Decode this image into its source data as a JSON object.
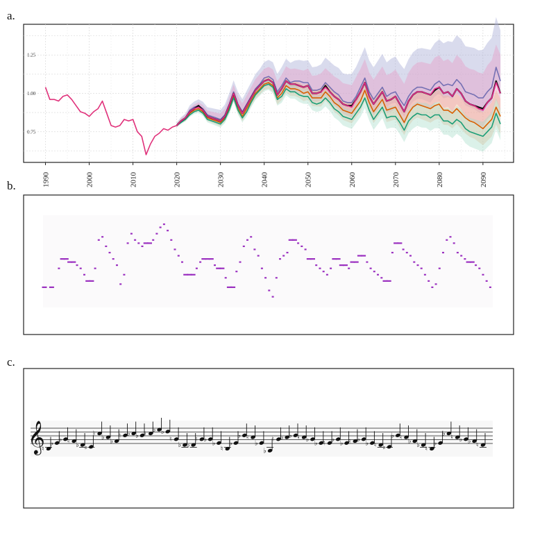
{
  "panels": {
    "a": "a.",
    "b": "b.",
    "c": "c."
  },
  "chart_data": [
    {
      "type": "line",
      "panel": "a.",
      "xlim": [
        1985,
        2097
      ],
      "ylim": [
        0.55,
        1.45
      ],
      "grid": true,
      "x_ticks": [
        1990,
        2000,
        2010,
        2020,
        2030,
        2040,
        2050,
        2060,
        2070,
        2080,
        2090
      ],
      "y_ticks": [
        0.75,
        1.0,
        1.25
      ],
      "y_tick_labels": [
        "0.75",
        "1.00",
        "1.25"
      ],
      "history": {
        "color": "#e0307a",
        "x": [
          1990,
          1991,
          1992,
          1993,
          1994,
          1995,
          1996,
          1997,
          1998,
          1999,
          2000,
          2001,
          2002,
          2003,
          2004,
          2005,
          2006,
          2007,
          2008,
          2009,
          2010,
          2011,
          2012,
          2013,
          2014,
          2015,
          2016,
          2017,
          2018,
          2019,
          2020
        ],
        "y": [
          1.04,
          0.96,
          0.96,
          0.95,
          0.98,
          0.99,
          0.96,
          0.92,
          0.88,
          0.87,
          0.85,
          0.88,
          0.9,
          0.95,
          0.87,
          0.79,
          0.78,
          0.79,
          0.83,
          0.82,
          0.83,
          0.75,
          0.72,
          0.6,
          0.67,
          0.72,
          0.74,
          0.77,
          0.76,
          0.78,
          0.79
        ]
      },
      "forecast_x": [
        2020,
        2021,
        2022,
        2023,
        2024,
        2025,
        2026,
        2027,
        2028,
        2029,
        2030,
        2031,
        2032,
        2033,
        2034,
        2035,
        2036,
        2037,
        2038,
        2039,
        2040,
        2041,
        2042,
        2043,
        2044,
        2045,
        2046,
        2047,
        2048,
        2049,
        2050,
        2051,
        2052,
        2053,
        2054,
        2055,
        2056,
        2057,
        2058,
        2059,
        2060,
        2061,
        2062,
        2063,
        2064,
        2065,
        2066,
        2067,
        2068,
        2069,
        2070,
        2071,
        2072,
        2073,
        2074,
        2075,
        2076,
        2077,
        2078,
        2079,
        2080,
        2081,
        2082,
        2083,
        2084,
        2085,
        2086,
        2087,
        2088,
        2089,
        2090,
        2091,
        2092,
        2093,
        2094
      ],
      "series": [
        {
          "color": "#7570b3",
          "values": [
            0.79,
            0.82,
            0.84,
            0.89,
            0.91,
            0.92,
            0.9,
            0.86,
            0.85,
            0.84,
            0.83,
            0.86,
            0.93,
            1.01,
            0.93,
            0.88,
            0.93,
            0.98,
            1.03,
            1.06,
            1.1,
            1.11,
            1.09,
            1.01,
            1.05,
            1.1,
            1.07,
            1.08,
            1.08,
            1.07,
            1.07,
            1.02,
            1.02,
            1.03,
            1.07,
            1.04,
            1.01,
            0.99,
            0.95,
            0.94,
            0.94,
            0.98,
            1.04,
            1.1,
            1.01,
            0.96,
            1.0,
            1.04,
            0.98,
            1.0,
            1.01,
            0.96,
            0.92,
            0.98,
            1.02,
            1.04,
            1.04,
            1.03,
            1.02,
            1.06,
            1.08,
            1.05,
            1.06,
            1.05,
            1.09,
            1.06,
            1.01,
            1.0,
            0.99,
            0.97,
            0.97,
            1.01,
            1.04,
            1.17,
            1.08
          ]
        },
        {
          "color": "#111111",
          "values": [
            0.79,
            0.82,
            0.84,
            0.88,
            0.9,
            0.92,
            0.89,
            0.85,
            0.84,
            0.83,
            0.82,
            0.85,
            0.92,
            1.0,
            0.92,
            0.87,
            0.92,
            0.97,
            1.02,
            1.05,
            1.08,
            1.09,
            1.07,
            0.99,
            1.03,
            1.08,
            1.06,
            1.06,
            1.05,
            1.04,
            1.05,
            1.0,
            1.0,
            1.01,
            1.05,
            1.01,
            0.98,
            0.96,
            0.93,
            0.92,
            0.92,
            0.96,
            1.01,
            1.07,
            0.98,
            0.93,
            0.97,
            1.01,
            0.95,
            0.96,
            0.98,
            0.93,
            0.88,
            0.95,
            0.99,
            1.01,
            1.01,
            1.0,
            0.99,
            1.02,
            1.04,
            1.0,
            1.01,
            0.98,
            1.03,
            1.0,
            0.95,
            0.93,
            0.92,
            0.91,
            0.9,
            0.94,
            0.97,
            1.08,
            1.0
          ]
        },
        {
          "color": "#e7298a",
          "values": [
            0.79,
            0.82,
            0.84,
            0.88,
            0.9,
            0.91,
            0.89,
            0.85,
            0.84,
            0.83,
            0.82,
            0.85,
            0.92,
            1.0,
            0.92,
            0.87,
            0.92,
            0.97,
            1.02,
            1.05,
            1.08,
            1.09,
            1.07,
            0.99,
            1.03,
            1.08,
            1.06,
            1.06,
            1.05,
            1.04,
            1.05,
            1.0,
            1.0,
            1.01,
            1.04,
            1.01,
            0.98,
            0.96,
            0.93,
            0.92,
            0.91,
            0.96,
            1.01,
            1.07,
            0.98,
            0.93,
            0.97,
            1.01,
            0.95,
            0.96,
            0.98,
            0.93,
            0.88,
            0.95,
            0.99,
            1.01,
            1.01,
            1.0,
            0.99,
            1.03,
            1.04,
            1.0,
            1.01,
            0.98,
            1.03,
            1.0,
            0.95,
            0.93,
            0.92,
            0.9,
            0.89,
            0.94,
            0.97,
            1.07,
            1.0
          ]
        },
        {
          "color": "#d95f02",
          "values": [
            0.79,
            0.82,
            0.83,
            0.87,
            0.89,
            0.9,
            0.88,
            0.84,
            0.83,
            0.82,
            0.81,
            0.84,
            0.9,
            0.98,
            0.9,
            0.85,
            0.9,
            0.95,
            1.0,
            1.03,
            1.06,
            1.07,
            1.05,
            0.97,
            1.0,
            1.05,
            1.03,
            1.03,
            1.02,
            1.0,
            1.01,
            0.97,
            0.97,
            0.97,
            1.01,
            0.98,
            0.94,
            0.92,
            0.89,
            0.88,
            0.87,
            0.91,
            0.95,
            1.02,
            0.94,
            0.88,
            0.92,
            0.96,
            0.89,
            0.9,
            0.91,
            0.86,
            0.81,
            0.87,
            0.91,
            0.93,
            0.92,
            0.91,
            0.9,
            0.92,
            0.93,
            0.89,
            0.89,
            0.87,
            0.9,
            0.87,
            0.84,
            0.82,
            0.81,
            0.79,
            0.77,
            0.8,
            0.83,
            0.91,
            0.85
          ]
        },
        {
          "color": "#1b9e77",
          "values": [
            0.79,
            0.81,
            0.83,
            0.86,
            0.88,
            0.89,
            0.87,
            0.83,
            0.82,
            0.81,
            0.8,
            0.83,
            0.89,
            0.97,
            0.89,
            0.84,
            0.88,
            0.94,
            0.99,
            1.02,
            1.05,
            1.06,
            1.04,
            0.96,
            0.98,
            1.03,
            1.01,
            1.01,
            0.99,
            0.98,
            0.98,
            0.94,
            0.93,
            0.94,
            0.97,
            0.94,
            0.9,
            0.88,
            0.85,
            0.84,
            0.83,
            0.87,
            0.91,
            0.97,
            0.89,
            0.83,
            0.87,
            0.91,
            0.84,
            0.85,
            0.85,
            0.81,
            0.76,
            0.82,
            0.85,
            0.87,
            0.86,
            0.86,
            0.84,
            0.86,
            0.86,
            0.82,
            0.82,
            0.8,
            0.83,
            0.81,
            0.77,
            0.75,
            0.74,
            0.73,
            0.72,
            0.75,
            0.78,
            0.87,
            0.8
          ]
        }
      ],
      "bands": [
        {
          "color": "#aab0d8",
          "spread": "wide"
        },
        {
          "color": "#e7a0c8",
          "spread": "medium"
        },
        {
          "color": "#f2b48a",
          "spread": "medium"
        },
        {
          "color": "#a4ddc8",
          "spread": "medium"
        }
      ]
    },
    {
      "type": "scatter",
      "panel": "b.",
      "marker": "horizontal-dash",
      "color": "#9b30c0",
      "notes": [
        {
          "x": 1,
          "y": 60
        },
        {
          "x": 3,
          "y": 60
        },
        {
          "x": 5,
          "y": 66
        },
        {
          "x": 6,
          "y": 69
        },
        {
          "x": 7,
          "y": 69
        },
        {
          "x": 8,
          "y": 68
        },
        {
          "x": 9,
          "y": 68
        },
        {
          "x": 10,
          "y": 67
        },
        {
          "x": 11,
          "y": 66
        },
        {
          "x": 12,
          "y": 64
        },
        {
          "x": 13,
          "y": 62
        },
        {
          "x": 14,
          "y": 62
        },
        {
          "x": 15,
          "y": 66
        },
        {
          "x": 16,
          "y": 75
        },
        {
          "x": 17,
          "y": 76
        },
        {
          "x": 18,
          "y": 73
        },
        {
          "x": 19,
          "y": 71
        },
        {
          "x": 20,
          "y": 69
        },
        {
          "x": 21,
          "y": 67
        },
        {
          "x": 22,
          "y": 61
        },
        {
          "x": 23,
          "y": 64
        },
        {
          "x": 24,
          "y": 74
        },
        {
          "x": 25,
          "y": 77
        },
        {
          "x": 26,
          "y": 75
        },
        {
          "x": 27,
          "y": 74
        },
        {
          "x": 28,
          "y": 73
        },
        {
          "x": 29,
          "y": 74
        },
        {
          "x": 30,
          "y": 74
        },
        {
          "x": 31,
          "y": 75
        },
        {
          "x": 32,
          "y": 77
        },
        {
          "x": 33,
          "y": 79
        },
        {
          "x": 34,
          "y": 80
        },
        {
          "x": 35,
          "y": 78
        },
        {
          "x": 36,
          "y": 75
        },
        {
          "x": 37,
          "y": 72
        },
        {
          "x": 38,
          "y": 70
        },
        {
          "x": 39,
          "y": 68
        },
        {
          "x": 40,
          "y": 64
        },
        {
          "x": 41,
          "y": 64
        },
        {
          "x": 42,
          "y": 64
        },
        {
          "x": 43,
          "y": 66
        },
        {
          "x": 44,
          "y": 68
        },
        {
          "x": 45,
          "y": 69
        },
        {
          "x": 46,
          "y": 69
        },
        {
          "x": 47,
          "y": 69
        },
        {
          "x": 48,
          "y": 67
        },
        {
          "x": 49,
          "y": 66
        },
        {
          "x": 50,
          "y": 66
        },
        {
          "x": 51,
          "y": 63
        },
        {
          "x": 52,
          "y": 60
        },
        {
          "x": 53,
          "y": 60
        },
        {
          "x": 54,
          "y": 65
        },
        {
          "x": 55,
          "y": 68
        },
        {
          "x": 56,
          "y": 73
        },
        {
          "x": 57,
          "y": 75
        },
        {
          "x": 58,
          "y": 76
        },
        {
          "x": 59,
          "y": 72
        },
        {
          "x": 60,
          "y": 70
        },
        {
          "x": 61,
          "y": 66
        },
        {
          "x": 62,
          "y": 63
        },
        {
          "x": 63,
          "y": 59
        },
        {
          "x": 64,
          "y": 57
        },
        {
          "x": 65,
          "y": 63
        },
        {
          "x": 66,
          "y": 69
        },
        {
          "x": 67,
          "y": 70
        },
        {
          "x": 68,
          "y": 71
        },
        {
          "x": 69,
          "y": 75
        },
        {
          "x": 70,
          "y": 75
        },
        {
          "x": 71,
          "y": 74
        },
        {
          "x": 72,
          "y": 73
        },
        {
          "x": 73,
          "y": 72
        },
        {
          "x": 74,
          "y": 69
        },
        {
          "x": 75,
          "y": 69
        },
        {
          "x": 76,
          "y": 67
        },
        {
          "x": 77,
          "y": 66
        },
        {
          "x": 78,
          "y": 65
        },
        {
          "x": 79,
          "y": 64
        },
        {
          "x": 80,
          "y": 66
        },
        {
          "x": 81,
          "y": 69
        },
        {
          "x": 82,
          "y": 69
        },
        {
          "x": 83,
          "y": 67
        },
        {
          "x": 84,
          "y": 67
        },
        {
          "x": 85,
          "y": 66
        },
        {
          "x": 86,
          "y": 68
        },
        {
          "x": 87,
          "y": 68
        },
        {
          "x": 88,
          "y": 70
        },
        {
          "x": 89,
          "y": 70
        },
        {
          "x": 90,
          "y": 68
        },
        {
          "x": 91,
          "y": 66
        },
        {
          "x": 92,
          "y": 65
        },
        {
          "x": 93,
          "y": 64
        },
        {
          "x": 94,
          "y": 63
        },
        {
          "x": 95,
          "y": 62
        },
        {
          "x": 96,
          "y": 62
        },
        {
          "x": 97,
          "y": 71
        },
        {
          "x": 98,
          "y": 74
        },
        {
          "x": 99,
          "y": 74
        },
        {
          "x": 100,
          "y": 72
        },
        {
          "x": 101,
          "y": 71
        },
        {
          "x": 102,
          "y": 70
        },
        {
          "x": 103,
          "y": 68
        },
        {
          "x": 104,
          "y": 67
        },
        {
          "x": 105,
          "y": 66
        },
        {
          "x": 106,
          "y": 64
        },
        {
          "x": 107,
          "y": 62
        },
        {
          "x": 108,
          "y": 60
        },
        {
          "x": 109,
          "y": 61
        },
        {
          "x": 110,
          "y": 66
        },
        {
          "x": 111,
          "y": 71
        },
        {
          "x": 112,
          "y": 75
        },
        {
          "x": 113,
          "y": 76
        },
        {
          "x": 114,
          "y": 74
        },
        {
          "x": 115,
          "y": 71
        },
        {
          "x": 116,
          "y": 70
        },
        {
          "x": 117,
          "y": 69
        },
        {
          "x": 118,
          "y": 68
        },
        {
          "x": 119,
          "y": 68
        },
        {
          "x": 120,
          "y": 67
        },
        {
          "x": 121,
          "y": 66
        },
        {
          "x": 122,
          "y": 64
        },
        {
          "x": 123,
          "y": 62
        },
        {
          "x": 124,
          "y": 60
        }
      ]
    },
    {
      "type": "other",
      "panel": "c.",
      "description_kind": "music-staff",
      "clef": "treble-clef-icon"
    }
  ]
}
